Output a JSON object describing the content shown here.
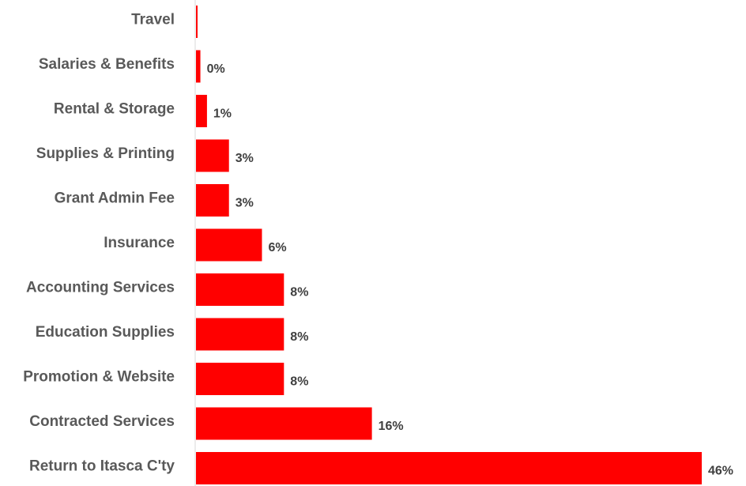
{
  "chart_data": {
    "type": "bar",
    "orientation": "horizontal",
    "title": "",
    "xlabel": "",
    "ylabel": "",
    "categories": [
      "Travel",
      "Salaries & Benefits",
      "Rental & Storage",
      "Supplies & Printing",
      "Grant Admin Fee",
      "Insurance",
      "Accounting Services",
      "Education Supplies",
      "Promotion & Website",
      "Contracted Services",
      "Return to Itasca C'ty"
    ],
    "values": [
      0.1,
      0.4,
      1.0,
      3.0,
      3.0,
      6.0,
      8.0,
      8.0,
      8.0,
      16.0,
      46.0
    ],
    "data_labels": [
      "",
      "0%",
      "1%",
      "3%",
      "3%",
      "6%",
      "8%",
      "8%",
      "8%",
      "16%",
      "46%"
    ],
    "xlim": [
      0,
      46
    ],
    "bar_color": "#FF0000",
    "axis_line": true,
    "grid": false,
    "legend": "none"
  }
}
